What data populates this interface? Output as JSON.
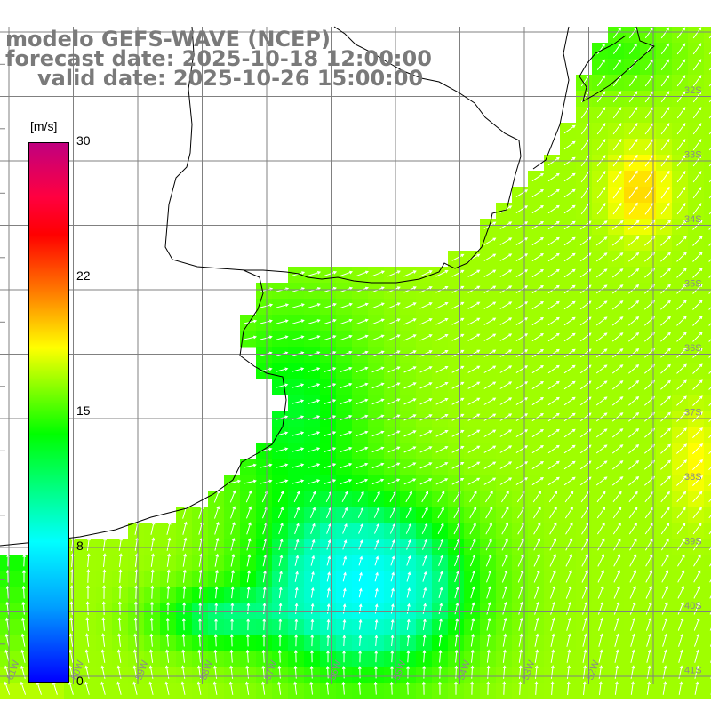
{
  "title": {
    "line1": "modelo GEFS-WAVE (NCEP)",
    "line2": "forecast date: 2025-10-18 12:00:00",
    "line3": "valid date: 2025-10-26 15:00:00"
  },
  "colorbar": {
    "unit": "[m/s]",
    "min": 0,
    "max": 30,
    "ticks": [
      "30",
      "22",
      "15",
      "8",
      "0"
    ],
    "colors": [
      "#0000ff",
      "#00a0ff",
      "#00ffff",
      "#00ff00",
      "#7fff00",
      "#ffff00",
      "#ff8000",
      "#ff0000",
      "#c0007f"
    ]
  },
  "map": {
    "lat_labels": [
      "32S",
      "33S",
      "34S",
      "35S",
      "36S",
      "37S",
      "38S",
      "39S",
      "40S",
      "41S"
    ],
    "lon_labels": [
      "61W",
      "60W",
      "59W",
      "58W",
      "57W",
      "56W",
      "55W",
      "54W",
      "53W",
      "52W"
    ]
  }
}
